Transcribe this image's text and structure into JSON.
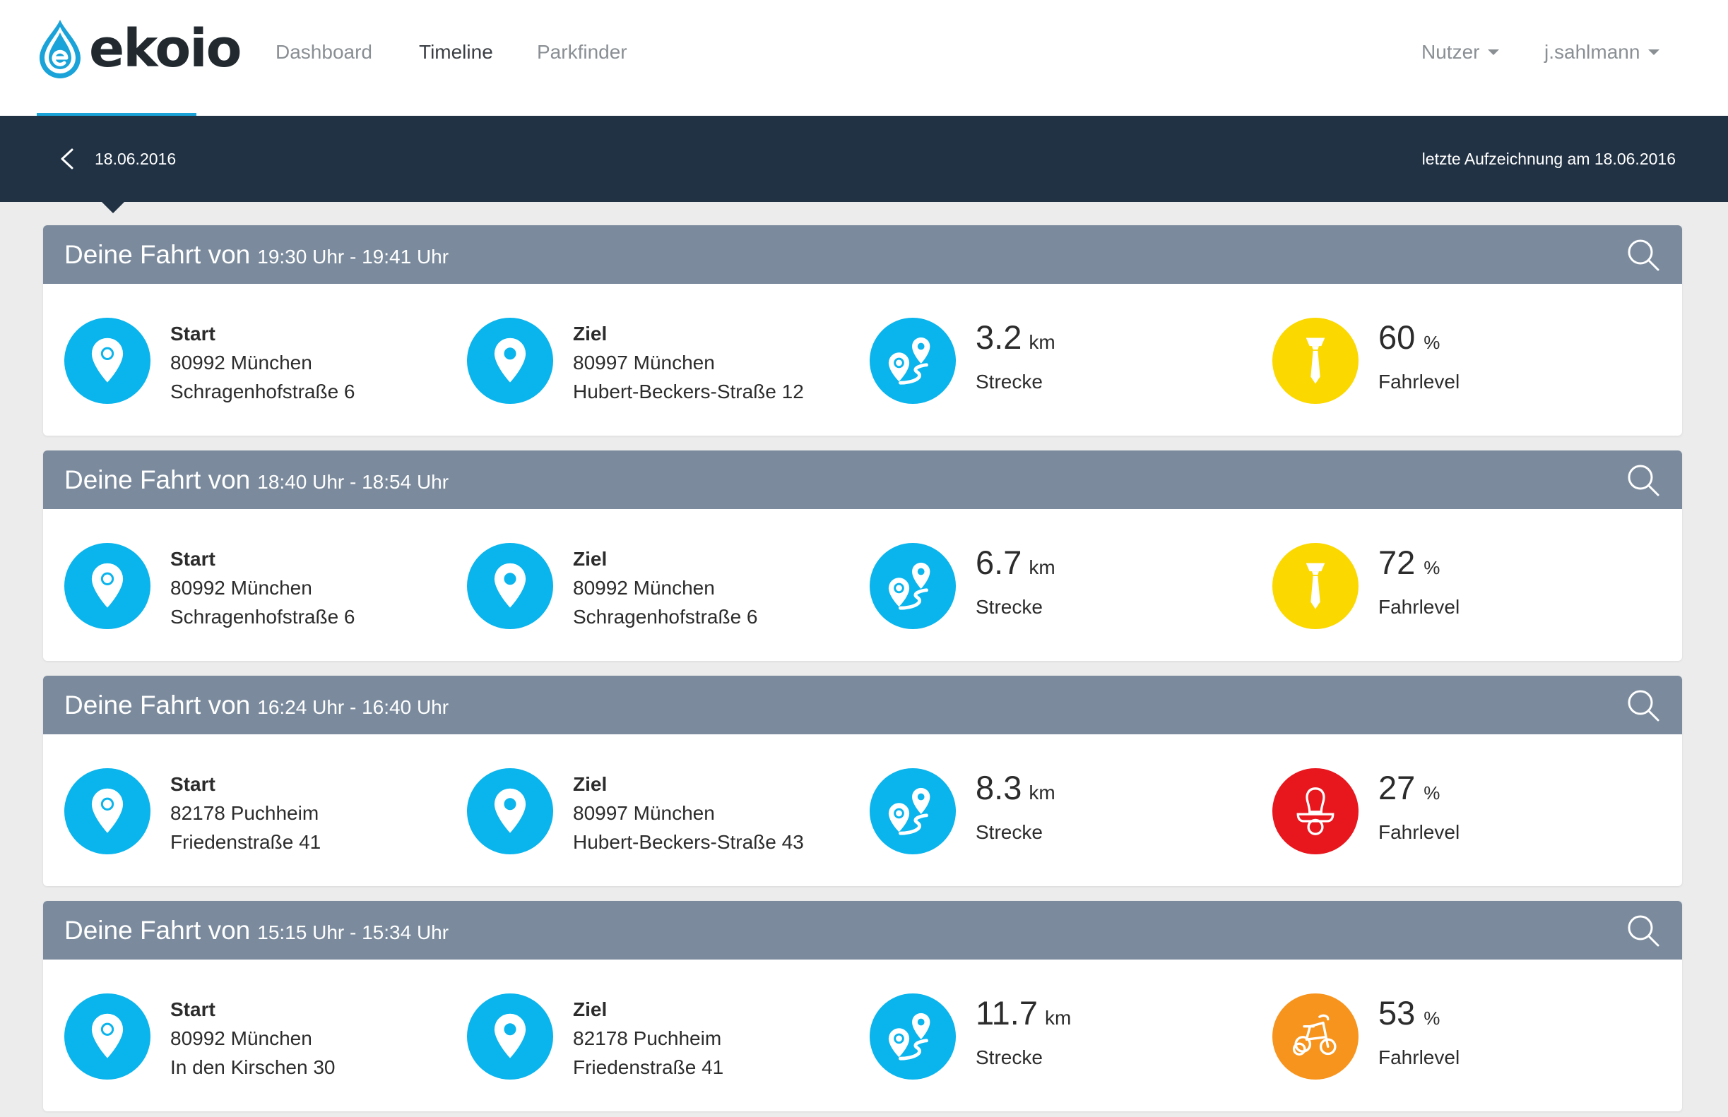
{
  "app": {
    "brand": "ekoio",
    "accent": "#1aa3d8",
    "header_bg": "#213244",
    "card_header_bg": "#7b8b9d"
  },
  "nav": {
    "links": [
      "Dashboard",
      "Timeline",
      "Parkfinder"
    ],
    "active": "Timeline",
    "dropdowns": [
      "Nutzer",
      "j.sahlmann"
    ]
  },
  "subheader": {
    "date": "18.06.2016",
    "last_record": "letzte Aufzeichnung am 18.06.2016"
  },
  "trips": [
    {
      "title": "Deine Fahrt von",
      "time": "19:30 Uhr - 19:41 Uhr",
      "start": {
        "label": "Start",
        "line1": "80992 München",
        "line2": "Schragenhofstraße 6"
      },
      "ziel": {
        "label": "Ziel",
        "line1": "80997 München",
        "line2": "Hubert-Beckers-Straße 12"
      },
      "distance": {
        "value": "3.2",
        "unit": "km",
        "caption": "Strecke"
      },
      "level": {
        "value": "60",
        "unit": "%",
        "caption": "Fahrlevel",
        "icon": "tie-icon",
        "color": "#fbd800"
      }
    },
    {
      "title": "Deine Fahrt von",
      "time": "18:40 Uhr - 18:54 Uhr",
      "start": {
        "label": "Start",
        "line1": "80992 München",
        "line2": "Schragenhofstraße 6"
      },
      "ziel": {
        "label": "Ziel",
        "line1": "80992 München",
        "line2": "Schragenhofstraße 6"
      },
      "distance": {
        "value": "6.7",
        "unit": "km",
        "caption": "Strecke"
      },
      "level": {
        "value": "72",
        "unit": "%",
        "caption": "Fahrlevel",
        "icon": "tie-icon",
        "color": "#fbd800"
      }
    },
    {
      "title": "Deine Fahrt von",
      "time": "16:24 Uhr - 16:40 Uhr",
      "start": {
        "label": "Start",
        "line1": "82178 Puchheim",
        "line2": "Friedenstraße 41"
      },
      "ziel": {
        "label": "Ziel",
        "line1": "80997 München",
        "line2": "Hubert-Beckers-Straße 43"
      },
      "distance": {
        "value": "8.3",
        "unit": "km",
        "caption": "Strecke"
      },
      "level": {
        "value": "27",
        "unit": "%",
        "caption": "Fahrlevel",
        "icon": "pacifier-icon",
        "color": "#e8161d"
      }
    },
    {
      "title": "Deine Fahrt von",
      "time": "15:15 Uhr - 15:34 Uhr",
      "start": {
        "label": "Start",
        "line1": "80992 München",
        "line2": "In den Kirschen 30"
      },
      "ziel": {
        "label": "Ziel",
        "line1": "82178 Puchheim",
        "line2": "Friedenstraße 41"
      },
      "distance": {
        "value": "11.7",
        "unit": "km",
        "caption": "Strecke"
      },
      "level": {
        "value": "53",
        "unit": "%",
        "caption": "Fahrlevel",
        "icon": "tricycle-icon",
        "color": "#f7941d"
      }
    }
  ]
}
